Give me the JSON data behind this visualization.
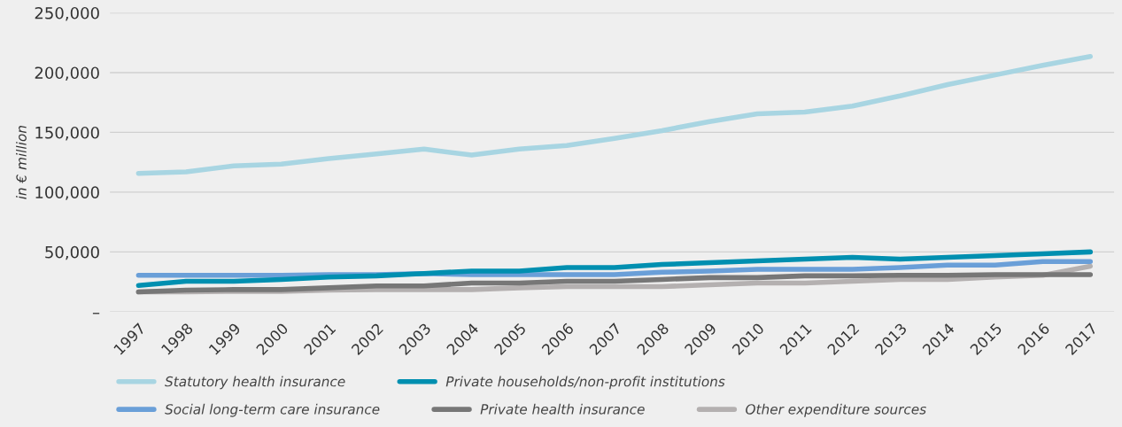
{
  "chart_data": {
    "type": "line",
    "ylabel": "in € million",
    "categories": [
      "1997",
      "1998",
      "1999",
      "2000",
      "2001",
      "2002",
      "2003",
      "2004",
      "2005",
      "2006",
      "2007",
      "2008",
      "2009",
      "2010",
      "2011",
      "2012",
      "2013",
      "2014",
      "2015",
      "2016",
      "2017"
    ],
    "series": [
      {
        "name": "Statutory health insurance",
        "color": "#a8d5e2",
        "values": [
          115700,
          117000,
          122000,
          123500,
          128000,
          132000,
          136000,
          131000,
          136000,
          139000,
          145000,
          151500,
          159000,
          165500,
          167000,
          172000,
          180500,
          190000,
          198000,
          206000,
          213500
        ]
      },
      {
        "name": "Private households/non-profit institutions",
        "color": "#008fb0",
        "values": [
          22000,
          25500,
          25500,
          27000,
          29000,
          30000,
          32000,
          34000,
          34000,
          37000,
          37000,
          39500,
          41000,
          42500,
          44000,
          45500,
          44000,
          45500,
          47000,
          48500,
          50000
        ]
      },
      {
        "name": "Social long-term care insurance",
        "color": "#6a9fd8",
        "values": [
          30500,
          30500,
          30500,
          30500,
          31000,
          31000,
          32000,
          31000,
          31000,
          31000,
          31000,
          33000,
          34000,
          35500,
          35500,
          35500,
          37000,
          39000,
          39000,
          42000,
          42000
        ]
      },
      {
        "name": "Private health insurance",
        "color": "#777777",
        "values": [
          16500,
          18000,
          18500,
          18500,
          20000,
          21500,
          21500,
          24000,
          24000,
          25500,
          25500,
          27000,
          28500,
          28500,
          30000,
          30000,
          30500,
          30500,
          31000,
          31000,
          31000
        ]
      },
      {
        "name": "Other expenditure sources",
        "color": "#b4b0b0",
        "values": [
          16500,
          16500,
          17000,
          17000,
          18000,
          18500,
          18500,
          18500,
          20000,
          21000,
          21000,
          21000,
          22500,
          24000,
          24000,
          25500,
          27000,
          27000,
          29000,
          30500,
          38000
        ]
      }
    ],
    "ylim": [
      0,
      250000
    ],
    "yticks": [
      {
        "value": 0,
        "label": "–"
      },
      {
        "value": 50000,
        "label": "50,000"
      },
      {
        "value": 100000,
        "label": "100,000"
      },
      {
        "value": 150000,
        "label": "150,000"
      },
      {
        "value": 200000,
        "label": "200,000"
      },
      {
        "value": 250000,
        "label": "250,000"
      }
    ],
    "grid": "y",
    "legend": "bottom",
    "marker": "none",
    "line_style": "solid"
  }
}
